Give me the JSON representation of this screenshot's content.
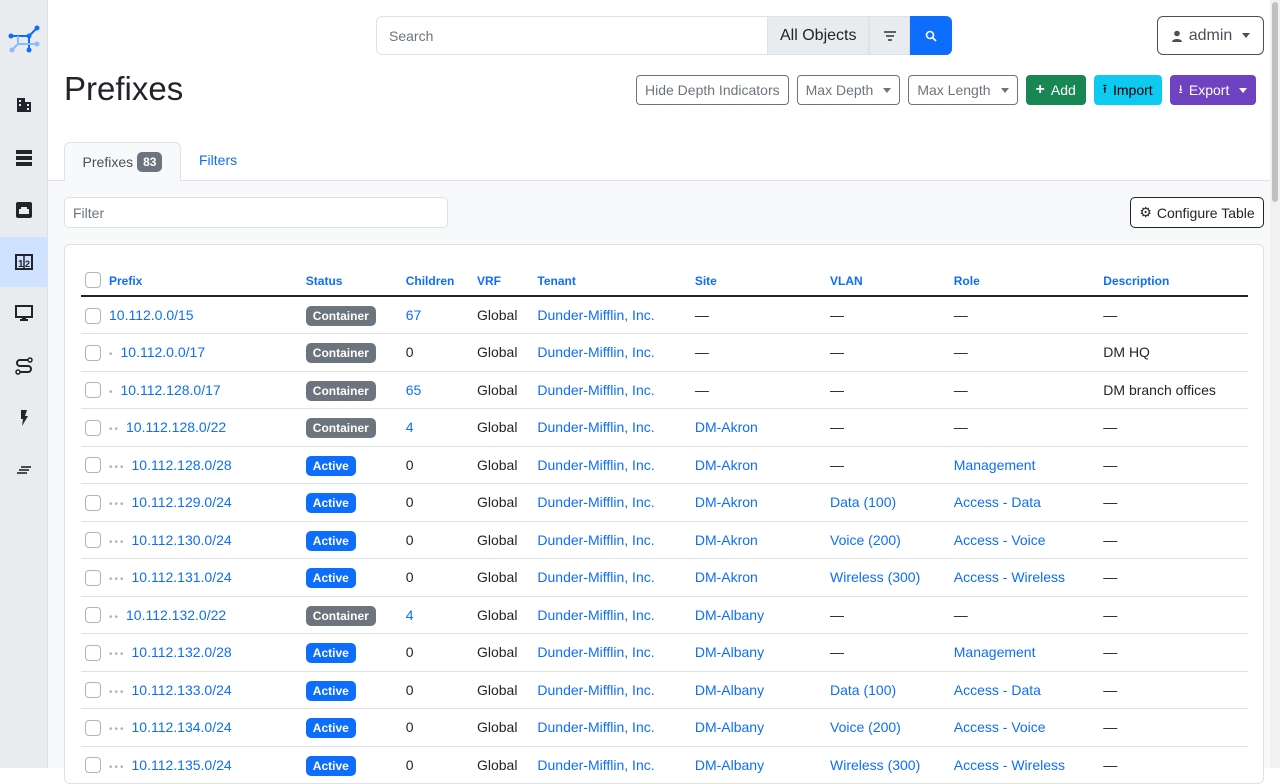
{
  "sidebar": {
    "items": [
      {
        "icon": "building-icon"
      },
      {
        "icon": "server-icon"
      },
      {
        "icon": "ethernet-icon"
      },
      {
        "icon": "ipam-icon",
        "active": true
      },
      {
        "icon": "monitor-icon"
      },
      {
        "icon": "circuit-icon"
      },
      {
        "icon": "power-icon"
      },
      {
        "icon": "menu-icon"
      }
    ]
  },
  "search": {
    "placeholder": "Search",
    "scope": "All Objects"
  },
  "user": {
    "label": "admin"
  },
  "page": {
    "title": "Prefixes"
  },
  "actions": {
    "hide_depth": "Hide Depth Indicators",
    "max_depth": "Max Depth",
    "max_length": "Max Length",
    "add": "Add",
    "import": "Import",
    "export": "Export"
  },
  "colors": {
    "add": "#198754",
    "import": "#0dcaf0",
    "export": "#6f42c1",
    "container": "#6c757d",
    "active": "#0d6efd"
  },
  "tabs": {
    "prefixes": "Prefixes",
    "count": "83",
    "filters": "Filters"
  },
  "filter": {
    "placeholder": "Filter"
  },
  "configure": "Configure Table",
  "table": {
    "columns": [
      "Prefix",
      "Status",
      "Children",
      "VRF",
      "Tenant",
      "Site",
      "VLAN",
      "Role",
      "Description"
    ],
    "rows": [
      {
        "depth": 0,
        "prefix": "10.112.0.0/15",
        "status": "Container",
        "children": "67",
        "vrf": "Global",
        "tenant": "Dunder-Mifflin, Inc.",
        "site": "—",
        "vlan": "—",
        "role": "—",
        "description": "—"
      },
      {
        "depth": 1,
        "prefix": "10.112.0.0/17",
        "status": "Container",
        "children": "0",
        "vrf": "Global",
        "tenant": "Dunder-Mifflin, Inc.",
        "site": "—",
        "vlan": "—",
        "role": "—",
        "description": "DM HQ"
      },
      {
        "depth": 1,
        "prefix": "10.112.128.0/17",
        "status": "Container",
        "children": "65",
        "vrf": "Global",
        "tenant": "Dunder-Mifflin, Inc.",
        "site": "—",
        "vlan": "—",
        "role": "—",
        "description": "DM branch offices"
      },
      {
        "depth": 2,
        "prefix": "10.112.128.0/22",
        "status": "Container",
        "children": "4",
        "vrf": "Global",
        "tenant": "Dunder-Mifflin, Inc.",
        "site": "DM-Akron",
        "vlan": "—",
        "role": "—",
        "description": "—"
      },
      {
        "depth": 3,
        "prefix": "10.112.128.0/28",
        "status": "Active",
        "children": "0",
        "vrf": "Global",
        "tenant": "Dunder-Mifflin, Inc.",
        "site": "DM-Akron",
        "vlan": "—",
        "role": "Management",
        "description": "—"
      },
      {
        "depth": 3,
        "prefix": "10.112.129.0/24",
        "status": "Active",
        "children": "0",
        "vrf": "Global",
        "tenant": "Dunder-Mifflin, Inc.",
        "site": "DM-Akron",
        "vlan": "Data (100)",
        "role": "Access - Data",
        "description": "—"
      },
      {
        "depth": 3,
        "prefix": "10.112.130.0/24",
        "status": "Active",
        "children": "0",
        "vrf": "Global",
        "tenant": "Dunder-Mifflin, Inc.",
        "site": "DM-Akron",
        "vlan": "Voice (200)",
        "role": "Access - Voice",
        "description": "—"
      },
      {
        "depth": 3,
        "prefix": "10.112.131.0/24",
        "status": "Active",
        "children": "0",
        "vrf": "Global",
        "tenant": "Dunder-Mifflin, Inc.",
        "site": "DM-Akron",
        "vlan": "Wireless (300)",
        "role": "Access - Wireless",
        "description": "—"
      },
      {
        "depth": 2,
        "prefix": "10.112.132.0/22",
        "status": "Container",
        "children": "4",
        "vrf": "Global",
        "tenant": "Dunder-Mifflin, Inc.",
        "site": "DM-Albany",
        "vlan": "—",
        "role": "—",
        "description": "—"
      },
      {
        "depth": 3,
        "prefix": "10.112.132.0/28",
        "status": "Active",
        "children": "0",
        "vrf": "Global",
        "tenant": "Dunder-Mifflin, Inc.",
        "site": "DM-Albany",
        "vlan": "—",
        "role": "Management",
        "description": "—"
      },
      {
        "depth": 3,
        "prefix": "10.112.133.0/24",
        "status": "Active",
        "children": "0",
        "vrf": "Global",
        "tenant": "Dunder-Mifflin, Inc.",
        "site": "DM-Albany",
        "vlan": "Data (100)",
        "role": "Access - Data",
        "description": "—"
      },
      {
        "depth": 3,
        "prefix": "10.112.134.0/24",
        "status": "Active",
        "children": "0",
        "vrf": "Global",
        "tenant": "Dunder-Mifflin, Inc.",
        "site": "DM-Albany",
        "vlan": "Voice (200)",
        "role": "Access - Voice",
        "description": "—"
      },
      {
        "depth": 3,
        "prefix": "10.112.135.0/24",
        "status": "Active",
        "children": "0",
        "vrf": "Global",
        "tenant": "Dunder-Mifflin, Inc.",
        "site": "DM-Albany",
        "vlan": "Wireless (300)",
        "role": "Access - Wireless",
        "description": "—"
      }
    ]
  }
}
